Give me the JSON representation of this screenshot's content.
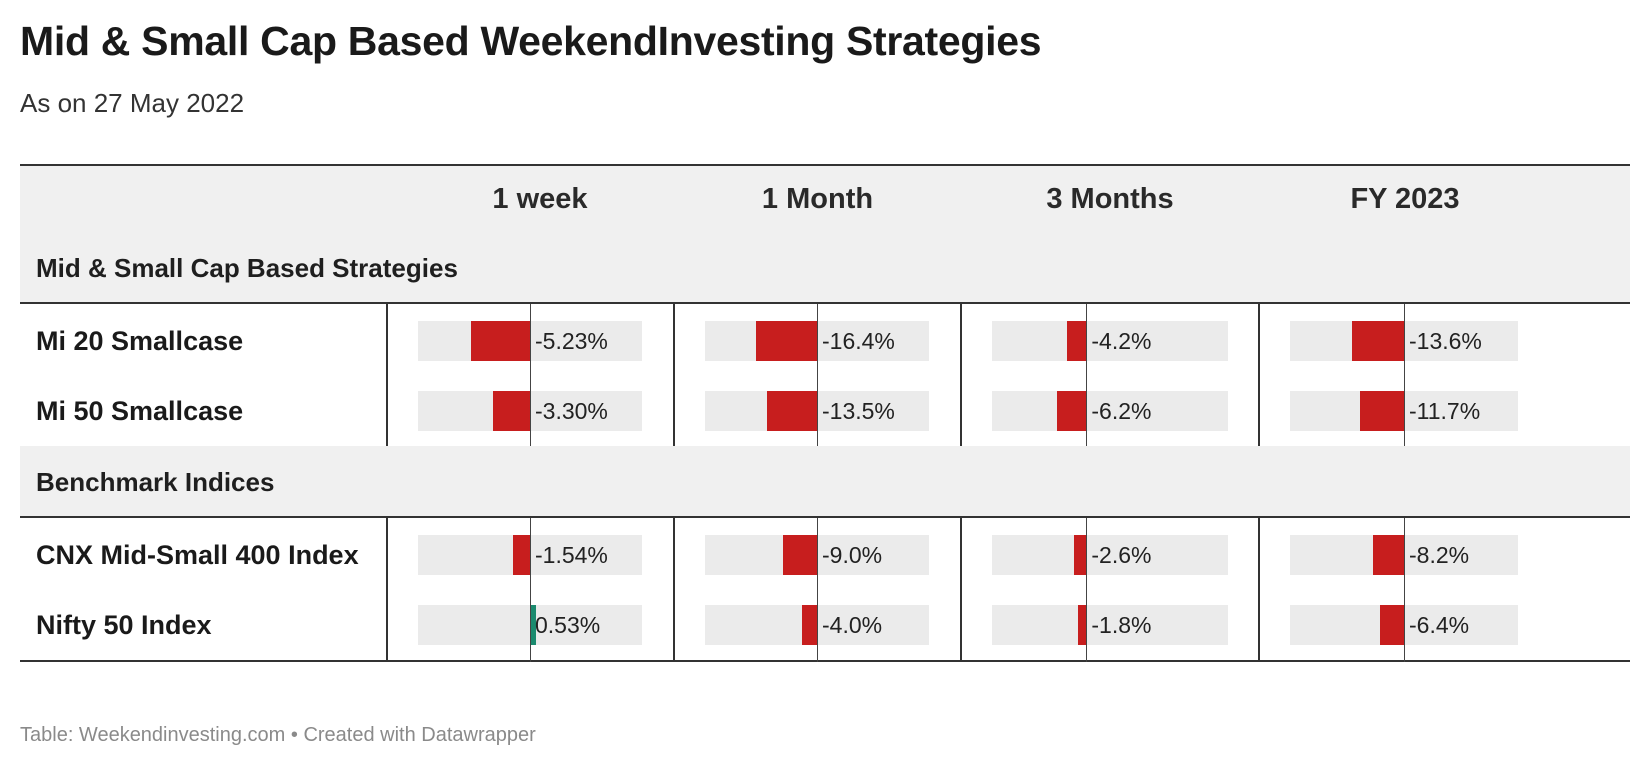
{
  "title": "Mid & Small Cap Based WeekendInvesting Strategies",
  "subtitle": "As on 27 May 2022",
  "footer": "Table: Weekendinvesting.com • Created with Datawrapper",
  "colors": {
    "negative": "#c71e1e",
    "positive": "#1a8a6e",
    "header_bg": "#f0f0f0",
    "bar_bg": "#ebebeb"
  },
  "chart_data": {
    "type": "table",
    "columns": [
      "1 week",
      "1 Month",
      "3 Months",
      "FY 2023"
    ],
    "sections": [
      {
        "label": "Mid & Small Cap Based Strategies",
        "rows": [
          {
            "name": "Mi 20 Smallcase",
            "values": [
              -5.23,
              -16.4,
              -4.2,
              -13.6
            ],
            "labels": [
              "-5.23%",
              "-16.4%",
              "-4.2%",
              "-13.6%"
            ]
          },
          {
            "name": "Mi 50 Smallcase",
            "values": [
              -3.3,
              -13.5,
              -6.2,
              -11.7
            ],
            "labels": [
              "-3.30%",
              "-13.5%",
              "-6.2%",
              "-11.7%"
            ]
          }
        ]
      },
      {
        "label": "Benchmark Indices",
        "rows": [
          {
            "name": "CNX Mid-Small 400 Index",
            "values": [
              -1.54,
              -9.0,
              -2.6,
              -8.2
            ],
            "labels": [
              "-1.54%",
              "-9.0%",
              "-2.6%",
              "-8.2%"
            ]
          },
          {
            "name": "Nifty 50 Index",
            "values": [
              0.53,
              -4.0,
              -1.8,
              -6.4
            ],
            "labels": [
              "0.53%",
              "-4.0%",
              "-1.8%",
              "-6.4%"
            ]
          }
        ]
      }
    ],
    "column_ranges": [
      [
        -10,
        10
      ],
      [
        -30,
        30
      ],
      [
        -20,
        30
      ],
      [
        -30,
        30
      ]
    ]
  }
}
